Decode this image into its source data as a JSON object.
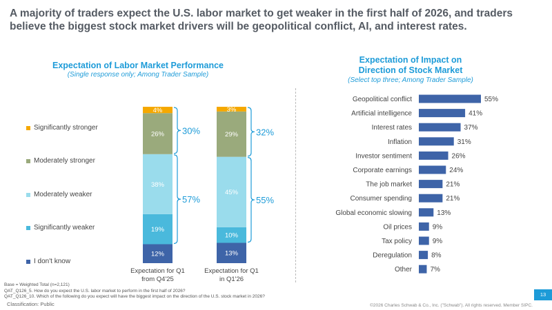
{
  "headline": "A majority of traders expect the U.S. labor market to get weaker in the first half of 2026, and traders believe the biggest stock market drivers will be geopolitical conflict, AI, and interest rates.",
  "colors": {
    "accent": "#1d9bd8",
    "sig_stronger": "#f5a800",
    "mod_stronger": "#9aaa7c",
    "mod_weaker": "#9adcec",
    "sig_weaker": "#4ab9dc",
    "dont_know": "#3e64a8",
    "bar_blue": "#3e64a8"
  },
  "chart_data": [
    {
      "type": "bar",
      "stacked": true,
      "title": "Expectation of Labor Market Performance",
      "subtitle": "(Single response only; Among Trader Sample)",
      "categories": [
        "Expectation for Q1 from Q4'25",
        "Expectation for Q1 in Q1'26"
      ],
      "category_lines": [
        [
          "Expectation for Q1",
          "from Q4'25"
        ],
        [
          "Expectation for Q1",
          "in Q1'26"
        ]
      ],
      "series": [
        {
          "name": "I don't know",
          "values": [
            12,
            13
          ],
          "labels": [
            "12%",
            "13%"
          ]
        },
        {
          "name": "Significantly weaker",
          "values": [
            19,
            10
          ],
          "labels": [
            "19%",
            "10%"
          ]
        },
        {
          "name": "Moderately weaker",
          "values": [
            38,
            45
          ],
          "labels": [
            "38%",
            "45%"
          ]
        },
        {
          "name": "Moderately stronger",
          "values": [
            26,
            29
          ],
          "labels": [
            "26%",
            "29%"
          ]
        },
        {
          "name": "Significantly stronger",
          "values": [
            4,
            3
          ],
          "labels": [
            "4%",
            "3%"
          ]
        }
      ],
      "legend_order": [
        "Significantly stronger",
        "Moderately stronger",
        "Moderately weaker",
        "Significantly weaker",
        "I don't know"
      ],
      "annotations": {
        "stronger_totals": [
          "30%",
          "32%"
        ],
        "weaker_totals": [
          "57%",
          "55%"
        ]
      },
      "legend": "left"
    },
    {
      "type": "bar",
      "orientation": "horizontal",
      "title": "Expectation of Impact on Direction of Stock Market",
      "title_lines": [
        "Expectation of Impact on",
        "Direction of Stock Market"
      ],
      "subtitle": "(Select top three; Among Trader Sample)",
      "categories": [
        "Geopolitical conflict",
        "Artificial intelligence",
        "Interest rates",
        "Inflation",
        "Investor sentiment",
        "Corporate earnings",
        "The job market",
        "Consumer spending",
        "Global economic slowing",
        "Oil prices",
        "Tax policy",
        "Deregulation",
        "Other"
      ],
      "values": [
        55,
        41,
        37,
        31,
        26,
        24,
        21,
        21,
        13,
        9,
        9,
        8,
        7
      ],
      "labels": [
        "55%",
        "41%",
        "37%",
        "31%",
        "26%",
        "24%",
        "21%",
        "21%",
        "13%",
        "9%",
        "9%",
        "8%",
        "7%"
      ]
    }
  ],
  "footnotes": [
    "Base = Weighted Total (n=2,121)",
    "QAT_Q126_5. How do you expect the U.S. labor market to perform in the first half of 2026?",
    "QAT_Q126_10. Which of the following do you expect will have the biggest impact on the direction of the U.S. stock market in 2026?"
  ],
  "classification": "Classification: Public",
  "copyright": "©2026 Charles Schwab & Co., Inc. (\"Schwab\"). All rights reserved. Member SIPC.",
  "page_number": "13"
}
